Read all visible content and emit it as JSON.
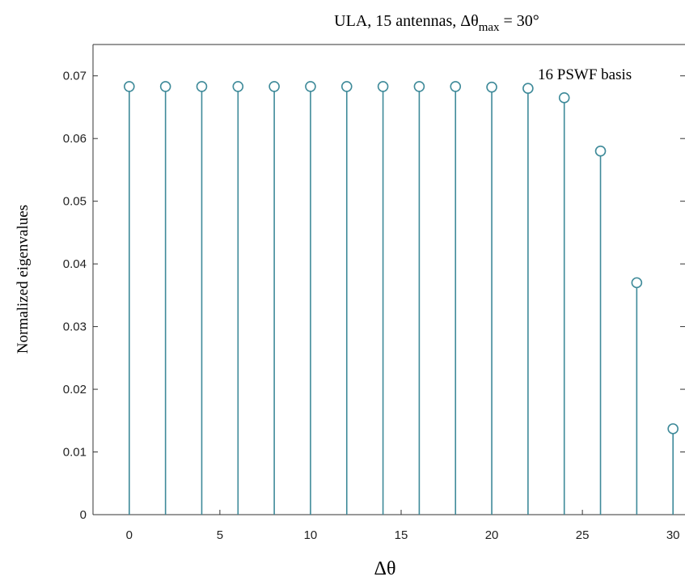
{
  "chart_data": {
    "type": "stem",
    "title_prefix": "ULA, 15 antennas, ",
    "title_symbol": "Δθ",
    "title_subscript": "max",
    "title_suffix": " = 30°",
    "xlabel": "Δθ",
    "ylabel": "Normalized eigenvalues",
    "legend": "16 PSWF basis",
    "xlim": [
      -2,
      32
    ],
    "ylim": [
      0,
      0.075
    ],
    "xticks": [
      0,
      5,
      10,
      15,
      20,
      25,
      30
    ],
    "yticks": [
      0,
      0.01,
      0.02,
      0.03,
      0.04,
      0.05,
      0.06,
      0.07
    ],
    "ytick_labels": [
      "0",
      "0.01",
      "0.02",
      "0.03",
      "0.04",
      "0.05",
      "0.06",
      "0.07"
    ],
    "x": [
      0,
      2,
      4,
      6,
      8,
      10,
      12,
      14,
      16,
      18,
      20,
      22,
      24,
      26,
      28,
      30
    ],
    "y": [
      0.0683,
      0.0683,
      0.0683,
      0.0683,
      0.0683,
      0.0683,
      0.0683,
      0.0683,
      0.0683,
      0.0683,
      0.0682,
      0.068,
      0.0665,
      0.058,
      0.037,
      0.0137
    ],
    "color": "#3e8a99",
    "grid": false
  }
}
